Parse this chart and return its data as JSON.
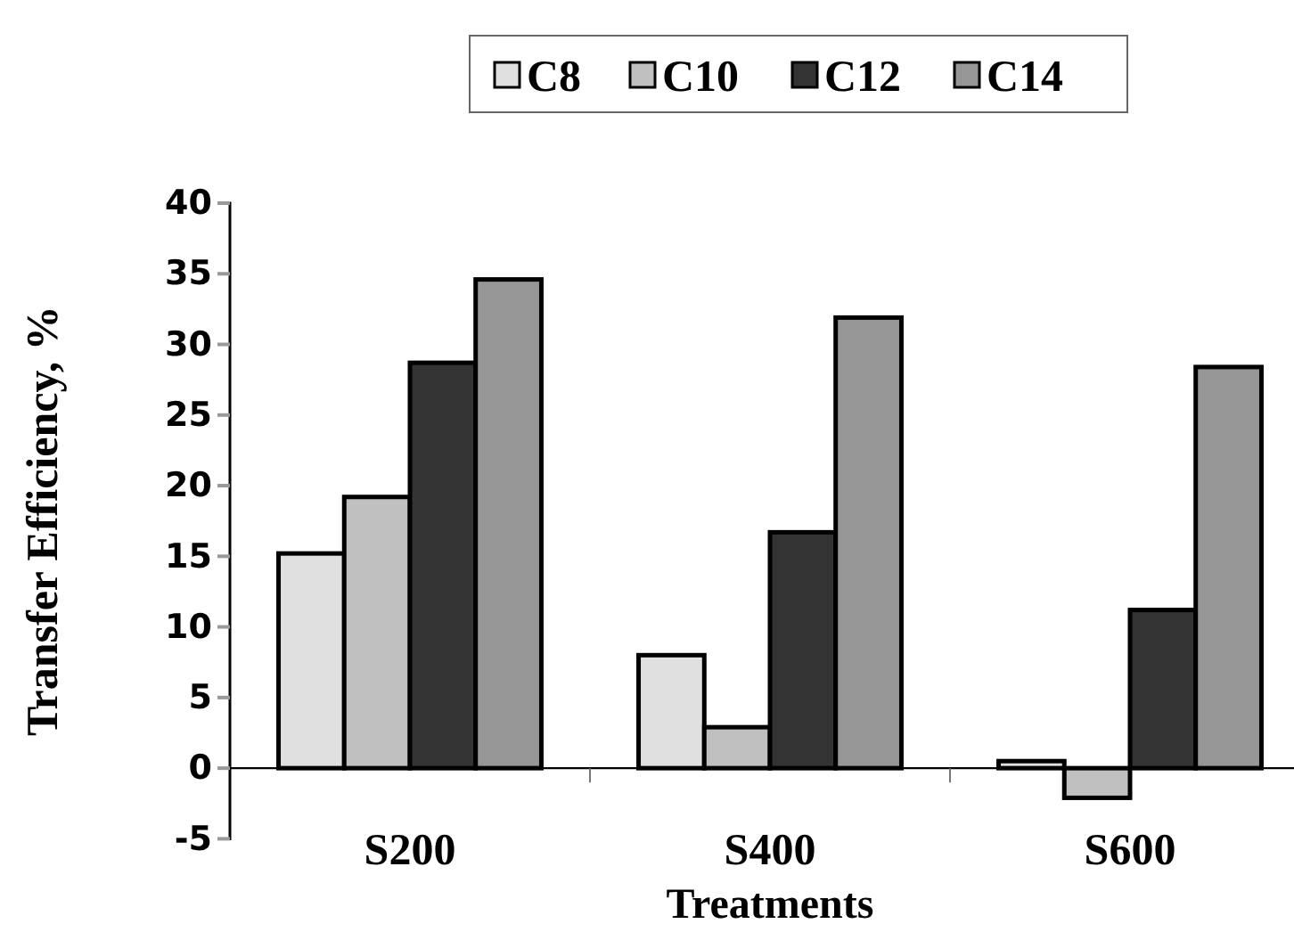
{
  "chart_data": {
    "type": "bar",
    "xlabel": "Treatments",
    "ylabel": "Transfer Efficiency, %",
    "categories": [
      "S200",
      "S400",
      "S600"
    ],
    "series": [
      {
        "name": "C8",
        "color": "#e0e0e0",
        "values": [
          15.2,
          8.0,
          0.5
        ]
      },
      {
        "name": "C10",
        "color": "#c0c0c0",
        "values": [
          19.2,
          2.9,
          -2.1
        ]
      },
      {
        "name": "C12",
        "color": "#333333",
        "values": [
          28.7,
          16.7,
          11.2
        ]
      },
      {
        "name": "C14",
        "color": "#969696",
        "values": [
          34.6,
          31.9,
          28.4
        ]
      }
    ],
    "ylim": [
      -5,
      40
    ],
    "yticks": [
      -5,
      0,
      5,
      10,
      15,
      20,
      25,
      30,
      35,
      40
    ],
    "grid": false,
    "legend": "top"
  }
}
